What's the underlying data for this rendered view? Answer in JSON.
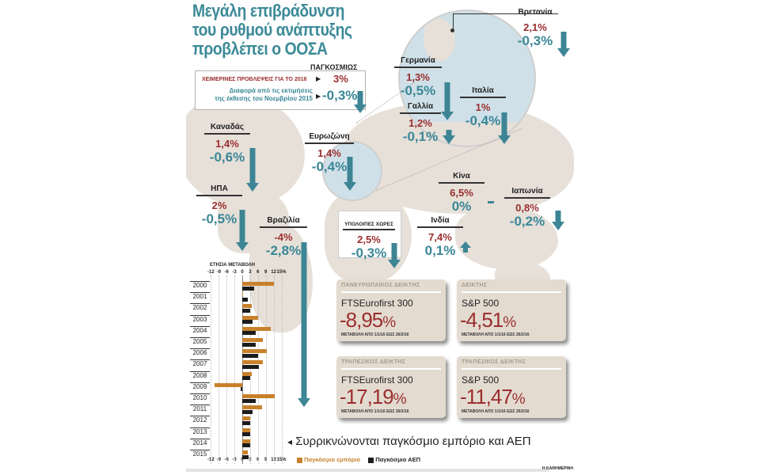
{
  "header": {
    "title_lines": [
      "Μεγάλη επιβράδυνση",
      "του ρυθμού ανάπτυξης",
      "προβλέπει ο ΟΟΣΑ"
    ]
  },
  "global": {
    "label": "ΠΑΓΚΟΣΜΙΩΣ",
    "forecast_label": "ΧΕΙΜΕΡΙΝΕΣ ΠΡΟΒΛΕΨΕΙΣ ΓΙΑ ΤΟ 2016",
    "forecast_value": "3%",
    "diff_label_line1": "Διαφορά από τις εκτιμήσεις",
    "diff_label_line2": "της έκθεσης του Νοεμβρίου 2015",
    "diff_value": "-0,3%",
    "marker": "▶"
  },
  "countries": [
    {
      "name": "Καναδάς",
      "forecast": "1,4%",
      "diff": "-0,6%",
      "direction": "down"
    },
    {
      "name": "ΗΠΑ",
      "forecast": "2%",
      "diff": "-0,5%",
      "direction": "down"
    },
    {
      "name": "Βραζιλία",
      "forecast": "-4%",
      "diff": "-2,8%",
      "direction": "down"
    },
    {
      "name": "Ευρωζώνη",
      "forecast": "1,4%",
      "diff": "-0,4%",
      "direction": "down"
    },
    {
      "name": "Βρετανία",
      "forecast": "2,1%",
      "diff": "-0,3%",
      "direction": "down"
    },
    {
      "name": "Γερμανία",
      "forecast": "1,3%",
      "diff": "-0,5%",
      "direction": "down"
    },
    {
      "name": "Γαλλία",
      "forecast": "1,2%",
      "diff": "-0,1%",
      "direction": "down"
    },
    {
      "name": "Ιταλία",
      "forecast": "1%",
      "diff": "-0,4%",
      "direction": "down"
    },
    {
      "name": "Κίνα",
      "forecast": "6,5%",
      "diff": "0%",
      "direction": "flat"
    },
    {
      "name": "Ιαπωνία",
      "forecast": "0,8%",
      "diff": "-0,2%",
      "direction": "down"
    },
    {
      "name": "Ινδία",
      "forecast": "7,4%",
      "diff": "0,1%",
      "direction": "up"
    },
    {
      "name": "ΥΠΟΛΟΙΠΕΣ ΧΩΡΕΣ",
      "forecast": "2,5%",
      "diff": "-0,3%",
      "direction": "down"
    }
  ],
  "cards": [
    {
      "title": "ΠΑΝΕΥΡΩΠΑΪΚΟΣ ΔΕΙΚΤΗΣ",
      "index": "FTSEurofirst 300",
      "value": "-8,95",
      "unit": "%",
      "note": "ΜΕΤΑΒΟΛΗ ΑΠΟ 1/1/16 ΕΩΣ 26/2/16"
    },
    {
      "title": "ΔΕΙΚΤΗΣ",
      "index": "S&P 500",
      "value": "-4,51",
      "unit": "%",
      "note": "ΜΕΤΑΒΟΛΗ ΑΠΟ 1/1/16 ΕΩΣ 26/2/16"
    },
    {
      "title": "ΤΡΑΠΕΖΙΚΟΣ ΔΕΙΚΤΗΣ",
      "index": "FTSEurofirst 300",
      "value": "-17,19",
      "unit": "%",
      "note": "ΜΕΤΑΒΟΛΗ ΑΠΟ 1/1/16 ΕΩΣ 26/2/16"
    },
    {
      "title": "ΤΡΑΠΕΖΙΚΟΣ ΔΕΙΚΤΗΣ",
      "index": "S&P 500",
      "value": "-11,47",
      "unit": "%",
      "note": "ΜΕΤΑΒΟΛΗ ΑΠΟ 1/1/16 ΕΩΣ 26/2/16"
    }
  ],
  "chart_caption": "Συρρικνώνονται παγκόσμιο εμπόριο και ΑΕΠ",
  "chart_caption_marker": "◂",
  "footer_credit": "Η ΚΑΘΗΜΕΡΙΝΗ",
  "colors": {
    "title": "#3c8a98",
    "forecast_red": "#9b2e2e",
    "diff_teal": "#3a8797",
    "arrow": "#3d8595",
    "trade": "#c8812b",
    "gdp": "#1c1c1c",
    "card_bg": "#e3dbd0",
    "land": "#e6e0d8",
    "globe": "#cfe0e8"
  },
  "chart_data": {
    "type": "bar",
    "orientation": "horizontal",
    "title": "ΕΤΗΣΙΑ ΜΕΤΑΒΟΛΗ",
    "xlabel": "",
    "ylabel": "",
    "xlim": [
      -12,
      15
    ],
    "x_ticks": [
      "-12",
      "-9",
      "-6",
      "-3",
      "0",
      "3",
      "6",
      "9",
      "12",
      "15%"
    ],
    "grid": true,
    "legend_position": "bottom",
    "categories": [
      "2000",
      "2001",
      "2002",
      "2003",
      "2004",
      "2005",
      "2006",
      "2007",
      "2008",
      "2009",
      "2010",
      "2011",
      "2012",
      "2013",
      "2014",
      "2015"
    ],
    "series": [
      {
        "name": "Παγκόσμιο εμπόριο",
        "color": "#c8812b",
        "values": [
          12,
          0.3,
          3.5,
          6,
          11,
          8,
          9.5,
          8,
          3.5,
          -10.5,
          12.5,
          7.5,
          3,
          3,
          3,
          2
        ]
      },
      {
        "name": "Παγκόσμιο ΑΕΠ",
        "color": "#1c1c1c",
        "values": [
          4.5,
          2,
          3,
          4,
          5,
          5,
          6,
          6.5,
          3,
          -0.5,
          5,
          4,
          3,
          3,
          3,
          2.5
        ]
      }
    ]
  }
}
